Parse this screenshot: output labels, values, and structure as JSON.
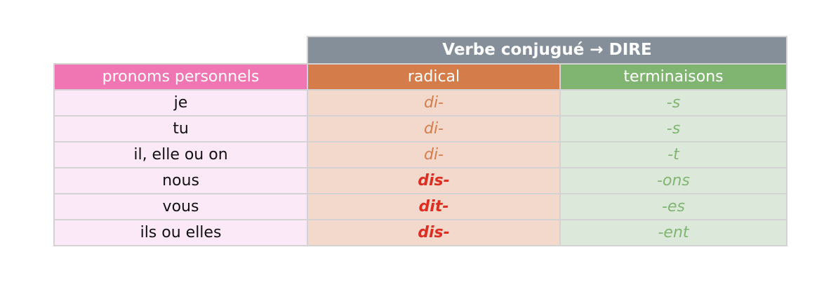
{
  "title": "Verbe conjugué → DIRE",
  "headers": {
    "pronouns": "pronoms personnels",
    "radical": "radical",
    "endings": "terminaisons"
  },
  "rows": [
    {
      "pronoun": "je",
      "radical": "di-",
      "ending": "-s",
      "irregular": false
    },
    {
      "pronoun": "tu",
      "radical": "di-",
      "ending": "-s",
      "irregular": false
    },
    {
      "pronoun": "il, elle ou on",
      "radical": "di-",
      "ending": "-t",
      "irregular": false
    },
    {
      "pronoun": "nous",
      "radical": "dis-",
      "ending": "-ons",
      "irregular": true
    },
    {
      "pronoun": "vous",
      "radical": "dit-",
      "ending": "-es",
      "irregular": true
    },
    {
      "pronoun": "ils ou elles",
      "radical": "dis-",
      "ending": "-ent",
      "irregular": true
    }
  ],
  "colors": {
    "title_bg": "#858f9a",
    "pronoun_header": "#ef76b2",
    "radical_header": "#d47d4b",
    "ending_header": "#80b571",
    "irregular_radical": "#dd2e22"
  }
}
